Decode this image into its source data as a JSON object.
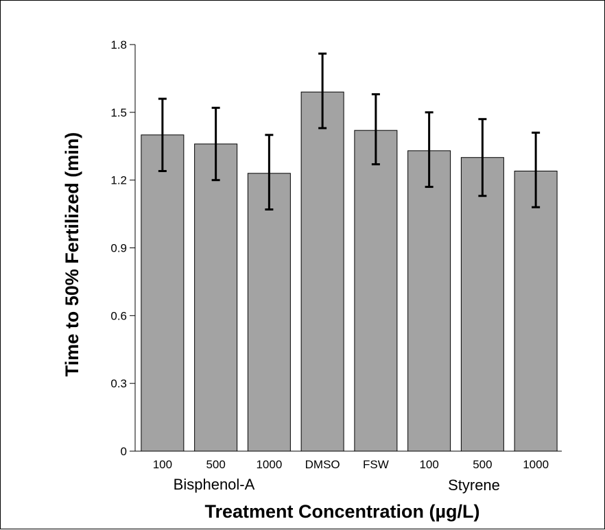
{
  "chart_data": {
    "type": "bar",
    "title": "",
    "xlabel": "Treatment Concentration (µg/L)",
    "ylabel": "Time to 50% Fertilized (min)",
    "ylim": [
      0,
      1.8
    ],
    "yticks": [
      "0",
      "0.3",
      "0.6",
      "0.9",
      "1.2",
      "1.5",
      "1.8"
    ],
    "categories": [
      "100",
      "500",
      "1000",
      "DMSO",
      "FSW",
      "100",
      "500",
      "1000"
    ],
    "values": [
      1.4,
      1.36,
      1.23,
      1.59,
      1.42,
      1.33,
      1.3,
      1.24
    ],
    "error_low": [
      1.24,
      1.2,
      1.07,
      1.43,
      1.27,
      1.17,
      1.13,
      1.08
    ],
    "error_high": [
      1.56,
      1.52,
      1.4,
      1.76,
      1.58,
      1.5,
      1.47,
      1.41
    ],
    "groups": [
      "Bisphenol-A",
      "Styrene"
    ],
    "grid": false,
    "bar_color": "#a3a3a3",
    "legend": "none"
  }
}
